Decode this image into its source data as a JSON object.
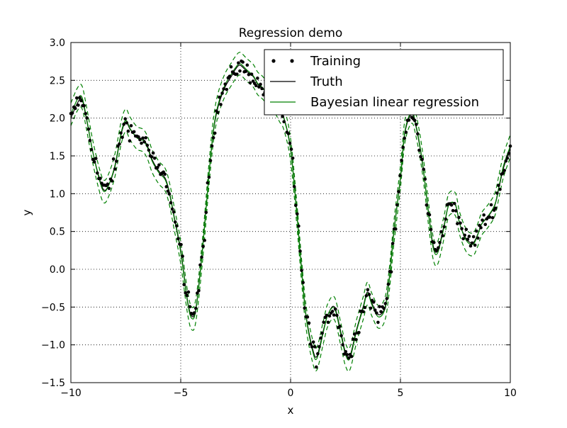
{
  "chart_data": {
    "type": "line",
    "title": "Regression demo",
    "xlabel": "x",
    "ylabel": "y",
    "xlim": [
      -10,
      10
    ],
    "ylim": [
      -1.5,
      3.0
    ],
    "xticks": [
      -10,
      -5,
      0,
      5,
      10
    ],
    "xtick_labels": [
      "−10",
      "−5",
      "0",
      "5",
      "10"
    ],
    "yticks": [
      -1.5,
      -1.0,
      -0.5,
      0.0,
      0.5,
      1.0,
      1.5,
      2.0,
      2.5,
      3.0
    ],
    "ytick_labels": [
      "−1.5",
      "−1.0",
      "−0.5",
      "0.0",
      "0.5",
      "1.0",
      "1.5",
      "2.0",
      "2.5",
      "3.0"
    ],
    "grid": true,
    "legend_position": "top-right",
    "legend": [
      {
        "label": "Training",
        "style": "dots",
        "color": "#000000"
      },
      {
        "label": "Truth",
        "style": "line",
        "color": "#000000"
      },
      {
        "label": "Bayesian linear regression",
        "style": "line",
        "color": "#008000"
      }
    ],
    "truth": {
      "x": [
        -10.0,
        -9.7,
        -9.5,
        -9.3,
        -9.0,
        -8.7,
        -8.5,
        -8.3,
        -8.0,
        -7.7,
        -7.5,
        -7.3,
        -7.0,
        -6.7,
        -6.5,
        -6.3,
        -6.0,
        -5.7,
        -5.5,
        -5.3,
        -5.0,
        -4.7,
        -4.5,
        -4.3,
        -4.0,
        -3.7,
        -3.5,
        -3.3,
        -3.0,
        -2.7,
        -2.5,
        -2.3,
        -2.0,
        -1.7,
        -1.5,
        -1.3,
        -1.0,
        -0.7,
        -0.5,
        -0.3,
        0.0,
        0.3,
        0.5,
        0.7,
        1.0,
        1.2,
        1.5,
        1.7,
        2.0,
        2.3,
        2.5,
        2.7,
        3.0,
        3.3,
        3.5,
        3.7,
        4.0,
        4.3,
        4.5,
        4.7,
        5.0,
        5.2,
        5.5,
        5.7,
        6.0,
        6.3,
        6.5,
        6.7,
        7.0,
        7.2,
        7.5,
        7.7,
        8.0,
        8.3,
        8.5,
        8.7,
        9.0,
        9.3,
        9.5,
        9.7,
        10.0
      ],
      "y": [
        2.0,
        2.2,
        2.25,
        2.0,
        1.55,
        1.2,
        1.05,
        1.1,
        1.35,
        1.8,
        1.95,
        1.85,
        1.75,
        1.72,
        1.62,
        1.45,
        1.3,
        1.2,
        1.0,
        0.7,
        0.25,
        -0.4,
        -0.62,
        -0.5,
        0.3,
        1.3,
        1.85,
        2.15,
        2.4,
        2.55,
        2.65,
        2.7,
        2.62,
        2.55,
        2.45,
        2.4,
        2.3,
        2.2,
        2.1,
        2.0,
        1.6,
        0.7,
        0.0,
        -0.6,
        -1.05,
        -1.15,
        -0.8,
        -0.6,
        -0.5,
        -0.85,
        -1.1,
        -1.15,
        -0.8,
        -0.5,
        -0.3,
        -0.45,
        -0.6,
        -0.5,
        -0.1,
        0.5,
        1.2,
        1.8,
        2.05,
        1.9,
        1.4,
        0.7,
        0.3,
        0.25,
        0.6,
        0.85,
        0.85,
        0.6,
        0.4,
        0.35,
        0.45,
        0.6,
        0.7,
        0.85,
        1.1,
        1.35,
        1.6
      ]
    },
    "bayes_mean": {
      "x": [
        -10.0,
        -9.7,
        -9.5,
        -9.3,
        -9.0,
        -8.7,
        -8.5,
        -8.3,
        -8.0,
        -7.7,
        -7.5,
        -7.3,
        -7.0,
        -6.7,
        -6.5,
        -6.3,
        -6.0,
        -5.7,
        -5.5,
        -5.3,
        -5.0,
        -4.7,
        -4.5,
        -4.3,
        -4.0,
        -3.7,
        -3.5,
        -3.3,
        -3.0,
        -2.7,
        -2.5,
        -2.3,
        -2.0,
        -1.7,
        -1.5,
        -1.3,
        -1.0,
        -0.7,
        -0.5,
        -0.3,
        0.0,
        0.3,
        0.5,
        0.7,
        1.0,
        1.2,
        1.5,
        1.7,
        2.0,
        2.3,
        2.5,
        2.7,
        3.0,
        3.3,
        3.5,
        3.7,
        4.0,
        4.3,
        4.5,
        4.7,
        5.0,
        5.2,
        5.5,
        5.7,
        6.0,
        6.3,
        6.5,
        6.7,
        7.0,
        7.2,
        7.5,
        7.7,
        8.0,
        8.3,
        8.5,
        8.7,
        9.0,
        9.3,
        9.5,
        9.7,
        10.0
      ],
      "y": [
        2.05,
        2.25,
        2.28,
        2.02,
        1.55,
        1.18,
        1.03,
        1.1,
        1.37,
        1.82,
        1.97,
        1.86,
        1.74,
        1.7,
        1.6,
        1.43,
        1.28,
        1.18,
        0.98,
        0.68,
        0.22,
        -0.42,
        -0.65,
        -0.52,
        0.28,
        1.3,
        1.87,
        2.18,
        2.43,
        2.58,
        2.67,
        2.72,
        2.64,
        2.56,
        2.46,
        2.41,
        2.31,
        2.21,
        2.1,
        1.99,
        1.58,
        0.68,
        -0.02,
        -0.62,
        -1.08,
        -1.18,
        -0.82,
        -0.6,
        -0.52,
        -0.88,
        -1.13,
        -1.18,
        -0.82,
        -0.52,
        -0.32,
        -0.47,
        -0.63,
        -0.52,
        -0.12,
        0.48,
        1.22,
        1.82,
        2.08,
        1.92,
        1.42,
        0.68,
        0.27,
        0.22,
        0.58,
        0.85,
        0.86,
        0.6,
        0.38,
        0.33,
        0.44,
        0.6,
        0.71,
        0.86,
        1.12,
        1.38,
        1.63
      ]
    },
    "bayes_band_halfwidth": 0.15,
    "training_point_count": 300,
    "training_noise": 0.06
  }
}
